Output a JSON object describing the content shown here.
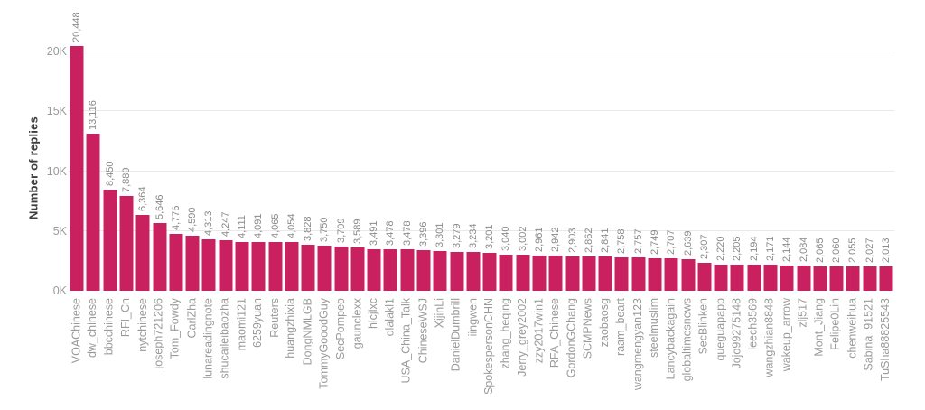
{
  "chart_data": {
    "type": "bar",
    "title": "",
    "xlabel": "",
    "ylabel": "Number of replies",
    "legend": "none",
    "grid": "horizontal",
    "ylim": [
      0,
      20000
    ],
    "x_tick_rotation": -90,
    "value_label_rotation": -90,
    "yticks": [
      {
        "value": 0,
        "label": "0K"
      },
      {
        "value": 5000,
        "label": "5K"
      },
      {
        "value": 10000,
        "label": "10K"
      },
      {
        "value": 15000,
        "label": "15K"
      },
      {
        "value": 20000,
        "label": "20K"
      }
    ],
    "categories": [
      "VOAChinese",
      "dw_chinese",
      "bbcchinese",
      "RFI_Cn",
      "nytchinese",
      "joseph721206",
      "Tom_Fowdy",
      "CarlZha",
      "lunareadingnote",
      "shucaileibaozha",
      "maomi121",
      "6259yuan",
      "Reuters",
      "huangzhixia",
      "DongNMLGB",
      "TommyGooodGuy",
      "SecPompeo",
      "gaunclexx",
      "hlcjlxc",
      "olalakl1",
      "USA_China_Talk",
      "ChineseWSJ",
      "XijinLi",
      "DanielDumbrill",
      "iingwen",
      "SpokespersonCHN",
      "zhang_heqing",
      "Jerry_grey2002",
      "zzy2017win1",
      "RFA_Chinese",
      "GordonGChang",
      "SCMPNews",
      "zaobaosg",
      "raam_beart",
      "wangmengyan123",
      "steelmuslim",
      "Lancybackagain",
      "globaltimesnews",
      "SecBlinken",
      "queguapapp",
      "Jojo99275148",
      "leech3569",
      "wangzhian8848",
      "wakeup_arrow",
      "zlj517",
      "Mont_Jiang",
      "Felipe0Lin",
      "chenweihua",
      "Sabina_91521",
      "TuSha88825543"
    ],
    "values": [
      20448,
      13116,
      8450,
      7889,
      6364,
      5646,
      4776,
      4590,
      4313,
      4247,
      4111,
      4091,
      4065,
      4054,
      3828,
      3750,
      3709,
      3589,
      3491,
      3478,
      3478,
      3396,
      3301,
      3279,
      3234,
      3201,
      3040,
      3002,
      2961,
      2942,
      2903,
      2862,
      2841,
      2758,
      2757,
      2749,
      2707,
      2639,
      2307,
      2220,
      2205,
      2194,
      2171,
      2144,
      2084,
      2065,
      2060,
      2055,
      2027,
      2013
    ],
    "value_labels": [
      "20,448",
      "13,116",
      "8,450",
      "7,889",
      "6,364",
      "5,646",
      "4,776",
      "4,590",
      "4,313",
      "4,247",
      "4,111",
      "4,091",
      "4,065",
      "4,054",
      "3,828",
      "3,750",
      "3,709",
      "3,589",
      "3,491",
      "3,478",
      "3,478",
      "3,396",
      "3,301",
      "3,279",
      "3,234",
      "3,201",
      "3,040",
      "3,002",
      "2,961",
      "2,942",
      "2,903",
      "2,862",
      "2,841",
      "2,758",
      "2,757",
      "2,749",
      "2,707",
      "2,639",
      "2,307",
      "2,220",
      "2,205",
      "2,194",
      "2,171",
      "2,144",
      "2,084",
      "2,065",
      "2,060",
      "2,055",
      "2,027",
      "2,013"
    ],
    "colors": {
      "bar": "#c92160",
      "gridline": "#e9e9e9",
      "value_label": "#8a8a8a",
      "tick_label": "#9a9a9a",
      "x_tick_label": "#9a9a9a",
      "axis_title": "#3c3c3c",
      "background": "#ffffff"
    }
  }
}
